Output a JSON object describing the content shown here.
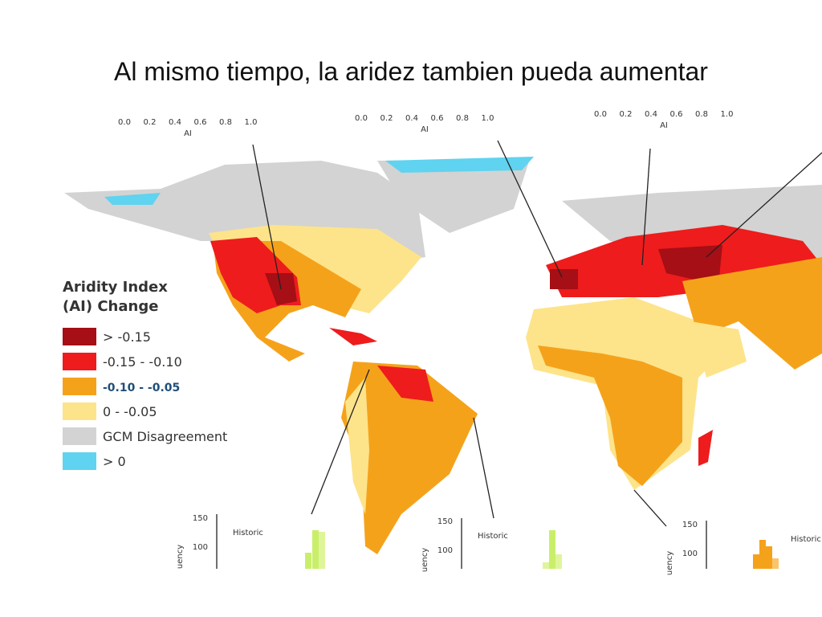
{
  "title": "Al mismo tiempo, la aridez tambien pueda aumentar",
  "legend": {
    "title": [
      "Aridity Index",
      "(AI) Change"
    ],
    "items": [
      {
        "label": "> -0.15",
        "color": "#a50f15"
      },
      {
        "label": "-0.15 - -0.10",
        "color": "#ee1c1c"
      },
      {
        "label": "-0.10 - -0.05",
        "color": "#f5a21b",
        "text_color": "#1f4e79"
      },
      {
        "label": "0 - -0.05",
        "color": "#fde48a"
      },
      {
        "label": "GCM Disagreement",
        "color": "#d3d3d3"
      },
      {
        "label": "> 0",
        "color": "#5fd3f0"
      }
    ]
  },
  "scales": [
    {
      "ticks": [
        "0.0",
        "0.2",
        "0.4",
        "0.6",
        "0.8",
        "1.0"
      ],
      "label": "AI"
    },
    {
      "ticks": [
        "0.0",
        "0.2",
        "0.4",
        "0.6",
        "0.8",
        "1.0"
      ],
      "label": "AI"
    },
    {
      "ticks": [
        "0.0",
        "0.2",
        "0.4",
        "0.6",
        "0.8",
        "1.0"
      ],
      "label": "AI"
    }
  ],
  "insets": [
    {
      "yticks": [
        "150",
        "100"
      ],
      "ylabel": "uency",
      "label": "Historic"
    },
    {
      "yticks": [
        "150",
        "100"
      ],
      "ylabel": "uency",
      "label": "Historic"
    },
    {
      "yticks": [
        "150",
        "100"
      ],
      "ylabel": "uency",
      "label": "Historic"
    }
  ]
}
